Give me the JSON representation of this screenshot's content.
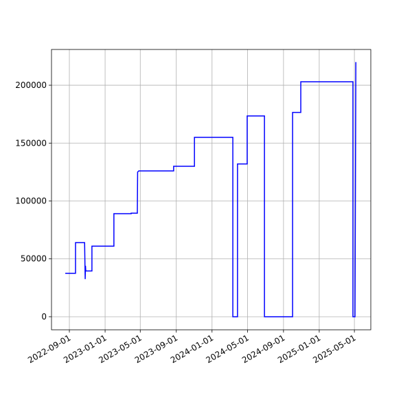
{
  "chart_data": {
    "type": "line",
    "x": [
      "2022-08-18",
      "2022-09-22",
      "2022-09-22",
      "2022-10-23",
      "2022-10-25",
      "2022-10-26",
      "2022-10-27",
      "2022-11-17",
      "2022-11-17",
      "2023-01-31",
      "2023-01-31",
      "2023-03-31",
      "2023-03-31",
      "2023-04-21",
      "2023-04-22",
      "2023-04-26",
      "2023-08-23",
      "2023-08-23",
      "2023-11-02",
      "2023-11-02",
      "2024-03-12",
      "2024-03-12",
      "2024-03-28",
      "2024-03-28",
      "2024-04-30",
      "2024-04-30",
      "2024-06-28",
      "2024-06-28",
      "2024-10-02",
      "2024-10-02",
      "2024-10-30",
      "2024-10-30",
      "2025-04-26",
      "2025-04-26",
      "2025-05-03",
      "2025-05-06"
    ],
    "series": [
      {
        "color": "#0000ff",
        "values": [
          37500,
          37500,
          64000,
          64000,
          32500,
          44000,
          39500,
          39500,
          61000,
          61000,
          89000,
          89000,
          89500,
          89500,
          125000,
          126000,
          126000,
          130000,
          130000,
          155000,
          155000,
          0,
          0,
          132000,
          132000,
          173500,
          173500,
          0,
          0,
          176500,
          176500,
          203000,
          203000,
          0,
          0,
          220000
        ]
      }
    ],
    "xlim": [
      "2022-07-02",
      "2025-06-26"
    ],
    "xticks": [
      "2022-09-01",
      "2023-01-01",
      "2023-05-01",
      "2023-09-01",
      "2024-01-01",
      "2024-05-01",
      "2024-09-01",
      "2025-01-01",
      "2025-05-01"
    ],
    "ylim": [
      -11300,
      230900
    ],
    "yticks": [
      0,
      50000,
      100000,
      150000,
      200000
    ],
    "grid": true
  }
}
